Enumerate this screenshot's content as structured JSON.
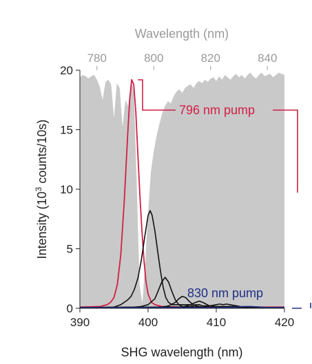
{
  "chart_data": {
    "type": "line",
    "xlabel": "SHG wavelength (nm)",
    "ylabel_parts": [
      "Intensity (10",
      "3",
      " counts/10s)"
    ],
    "top_xlabel": "Wavelength (nm)",
    "xlim": [
      390,
      420
    ],
    "ylim": [
      0,
      20
    ],
    "x_ticks": [
      "390",
      "400",
      "410",
      "420"
    ],
    "y_ticks": [
      "0",
      "5",
      "10",
      "15",
      "20"
    ],
    "top_ticks": [
      "780",
      "800",
      "820",
      "840"
    ],
    "top_xlim": [
      774,
      846
    ],
    "grid": false,
    "colors": {
      "red": "#d11f45",
      "black": "#111111",
      "navy": "#1f2f86",
      "gray_fill": "#c9c9c9",
      "gray_text": "#9a9a9a"
    },
    "annotations": {
      "red_label": "796 nm pump",
      "blue_label": "830 nm pump"
    },
    "gray_spectrum": {
      "x": [
        774,
        775,
        776,
        777,
        778,
        779,
        780,
        781,
        782,
        783,
        784,
        785,
        786,
        787,
        788,
        789,
        790,
        791,
        792,
        793,
        794,
        795,
        796,
        797,
        798,
        799,
        800,
        801,
        802,
        803,
        804,
        805,
        806,
        807,
        808,
        809,
        810,
        811,
        812,
        813,
        814,
        815,
        816,
        817,
        818,
        819,
        820,
        821,
        822,
        823,
        824,
        825,
        826,
        827,
        828,
        829,
        830,
        831,
        832,
        833,
        834,
        835,
        836,
        837,
        838,
        839,
        840,
        841,
        842,
        843,
        844,
        845,
        846
      ],
      "y": [
        19.4,
        19.6,
        19.5,
        19.3,
        19.5,
        19.6,
        19.2,
        18.6,
        17.5,
        19.0,
        19.2,
        18.8,
        16.0,
        18.9,
        18.5,
        15.2,
        17.5,
        17.0,
        19.2,
        18.2,
        10.5,
        2.0,
        0.4,
        4.0,
        8.0,
        11.5,
        13.2,
        14.5,
        15.5,
        16.4,
        17.0,
        17.4,
        17.2,
        17.8,
        18.2,
        18.4,
        18.1,
        18.5,
        18.7,
        18.8,
        18.5,
        18.9,
        19.1,
        18.9,
        19.2,
        19.0,
        19.3,
        19.4,
        19.1,
        19.5,
        19.2,
        19.6,
        19.4,
        19.2,
        19.5,
        19.7,
        19.4,
        19.6,
        19.3,
        19.6,
        19.8,
        19.5,
        19.3,
        19.6,
        19.8,
        19.5,
        19.6,
        19.7,
        19.4,
        19.6,
        19.8,
        19.7,
        19.6
      ]
    },
    "series": [
      {
        "color": "red",
        "x": [
          390,
          393,
          394,
          394.5,
          395,
          395.5,
          396,
          396.5,
          397,
          397.3,
          397.6,
          397.9,
          398.2,
          398.5,
          398.8,
          399.1,
          399.4,
          399.7,
          400,
          400.5,
          401,
          402,
          405,
          410,
          420
        ],
        "y": [
          0.1,
          0.15,
          0.3,
          0.5,
          0.9,
          2.0,
          4.5,
          9.0,
          14.5,
          17.5,
          19.2,
          18.8,
          16.5,
          13.0,
          9.5,
          6.5,
          4.0,
          2.2,
          1.2,
          0.5,
          0.3,
          0.15,
          0.1,
          0.1,
          0.1
        ]
      },
      {
        "color": "black",
        "x": [
          390,
          395,
          396,
          397,
          397.5,
          398,
          398.5,
          399,
          399.5,
          400,
          400.3,
          400.6,
          401,
          401.4,
          401.8,
          402.2,
          402.6,
          403,
          403.5,
          404,
          404.5,
          405,
          405.5,
          406,
          406.5,
          407,
          407.5,
          408,
          409,
          410,
          411,
          412,
          413,
          414,
          415,
          416,
          420
        ],
        "y": [
          0.05,
          0.1,
          0.3,
          0.7,
          1.0,
          1.6,
          2.5,
          4.0,
          6.0,
          7.8,
          8.2,
          7.8,
          6.5,
          4.8,
          3.2,
          1.8,
          0.9,
          0.5,
          0.3,
          0.3,
          0.3,
          0.3,
          0.3,
          0.3,
          0.2,
          0.3,
          0.3,
          0.2,
          0.2,
          0.15,
          0.15,
          0.15,
          0.15,
          0.1,
          0.1,
          0.05,
          0.05
        ]
      },
      {
        "color": "black",
        "x": [
          390,
          398,
          399,
          400,
          401,
          401.5,
          402,
          402.5,
          403,
          403.5,
          404,
          404.5,
          405,
          410,
          420
        ],
        "y": [
          0.05,
          0.1,
          0.15,
          0.3,
          0.8,
          1.5,
          2.2,
          2.6,
          2.2,
          1.4,
          0.7,
          0.3,
          0.15,
          0.05,
          0.05
        ]
      },
      {
        "color": "black",
        "x": [
          390,
          402,
          403,
          404,
          404.5,
          405,
          405.5,
          406,
          406.5,
          407,
          408,
          410,
          420
        ],
        "y": [
          0.05,
          0.1,
          0.2,
          0.5,
          0.8,
          1.0,
          0.9,
          0.6,
          0.35,
          0.2,
          0.1,
          0.05,
          0.05
        ]
      },
      {
        "color": "black",
        "x": [
          390,
          405,
          406,
          407,
          407.5,
          408,
          408.5,
          409,
          410,
          412,
          420
        ],
        "y": [
          0.05,
          0.1,
          0.25,
          0.5,
          0.6,
          0.5,
          0.35,
          0.2,
          0.1,
          0.05,
          0.05
        ]
      },
      {
        "color": "black",
        "x": [
          390,
          408,
          409,
          410,
          410.5,
          411,
          411.5,
          412,
          412.5,
          413,
          414,
          416,
          420
        ],
        "y": [
          0.05,
          0.1,
          0.2,
          0.3,
          0.35,
          0.3,
          0.35,
          0.3,
          0.25,
          0.2,
          0.1,
          0.05,
          0.05
        ]
      },
      {
        "color": "navy",
        "x": [
          390,
          395,
          400,
          405,
          410,
          412,
          413,
          414,
          415,
          416,
          417,
          418,
          420
        ],
        "y": [
          0.05,
          0.05,
          0.05,
          0.05,
          0.05,
          0.07,
          0.1,
          0.15,
          0.15,
          0.12,
          0.08,
          0.05,
          0.05
        ]
      }
    ]
  }
}
